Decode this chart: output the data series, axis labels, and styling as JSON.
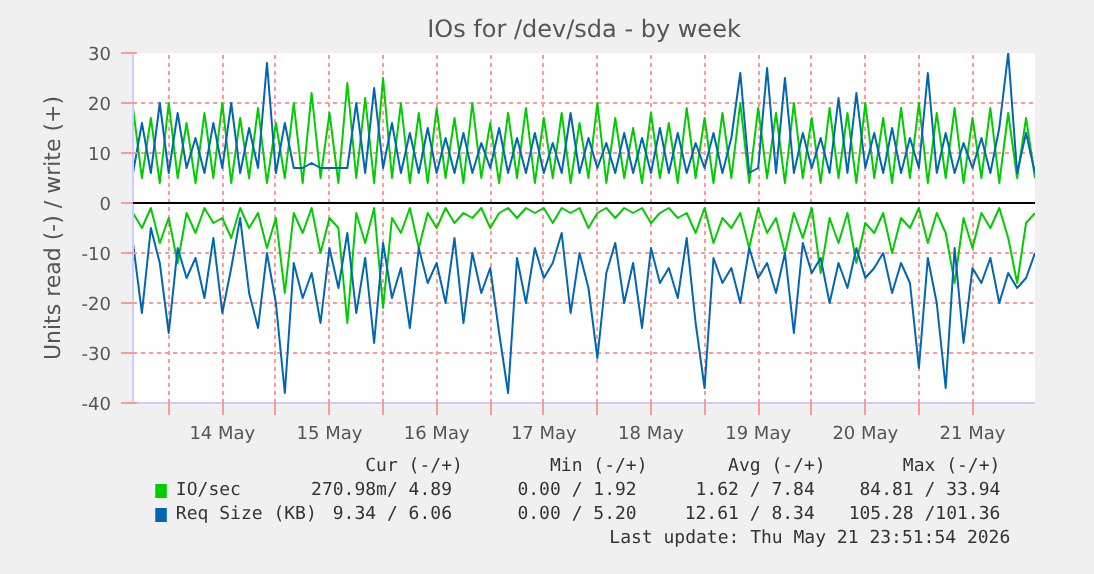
{
  "chart_data": {
    "type": "line",
    "title": "IOs for /dev/sda - by week",
    "ylabel": "Units read (-) / write (+)",
    "x": [
      "2026-05-13T16:00",
      "2026-05-13T18:00",
      "2026-05-13T20:00",
      "2026-05-13T22:00",
      "2026-05-14T00:00",
      "2026-05-14T02:00",
      "2026-05-14T04:00",
      "2026-05-14T06:00",
      "2026-05-14T08:00",
      "2026-05-14T10:00",
      "2026-05-14T12:00",
      "2026-05-14T14:00",
      "2026-05-14T16:00",
      "2026-05-14T18:00",
      "2026-05-14T20:00",
      "2026-05-14T22:00",
      "2026-05-15T00:00",
      "2026-05-15T02:00",
      "2026-05-15T04:00",
      "2026-05-15T06:00",
      "2026-05-15T08:00",
      "2026-05-15T10:00",
      "2026-05-15T12:00",
      "2026-05-15T14:00",
      "2026-05-15T16:00",
      "2026-05-15T18:00",
      "2026-05-15T20:00",
      "2026-05-15T22:00",
      "2026-05-16T00:00",
      "2026-05-16T02:00",
      "2026-05-16T04:00",
      "2026-05-16T06:00",
      "2026-05-16T08:00",
      "2026-05-16T10:00",
      "2026-05-16T12:00",
      "2026-05-16T14:00",
      "2026-05-16T16:00",
      "2026-05-16T18:00",
      "2026-05-16T20:00",
      "2026-05-16T22:00",
      "2026-05-17T00:00",
      "2026-05-17T02:00",
      "2026-05-17T04:00",
      "2026-05-17T06:00",
      "2026-05-17T08:00",
      "2026-05-17T10:00",
      "2026-05-17T12:00",
      "2026-05-17T14:00",
      "2026-05-17T16:00",
      "2026-05-17T18:00",
      "2026-05-17T20:00",
      "2026-05-17T22:00",
      "2026-05-18T00:00",
      "2026-05-18T02:00",
      "2026-05-18T04:00",
      "2026-05-18T06:00",
      "2026-05-18T08:00",
      "2026-05-18T10:00",
      "2026-05-18T12:00",
      "2026-05-18T14:00",
      "2026-05-18T16:00",
      "2026-05-18T18:00",
      "2026-05-18T20:00",
      "2026-05-18T22:00",
      "2026-05-19T00:00",
      "2026-05-19T02:00",
      "2026-05-19T04:00",
      "2026-05-19T06:00",
      "2026-05-19T08:00",
      "2026-05-19T10:00",
      "2026-05-19T12:00",
      "2026-05-19T14:00",
      "2026-05-19T16:00",
      "2026-05-19T18:00",
      "2026-05-19T20:00",
      "2026-05-19T22:00",
      "2026-05-20T00:00",
      "2026-05-20T02:00",
      "2026-05-20T04:00",
      "2026-05-20T06:00",
      "2026-05-20T08:00",
      "2026-05-20T10:00",
      "2026-05-20T12:00",
      "2026-05-20T14:00",
      "2026-05-20T16:00",
      "2026-05-20T18:00",
      "2026-05-20T20:00",
      "2026-05-20T22:00",
      "2026-05-21T00:00",
      "2026-05-21T02:00",
      "2026-05-21T04:00",
      "2026-05-21T06:00",
      "2026-05-21T08:00",
      "2026-05-21T10:00",
      "2026-05-21T12:00",
      "2026-05-21T14:00",
      "2026-05-21T16:00",
      "2026-05-21T18:00",
      "2026-05-21T20:00",
      "2026-05-21T22:00",
      "2026-05-22T00:00",
      "2026-05-22T02:00"
    ],
    "series": [
      {
        "name": "IO/sec",
        "color": "#00cc00",
        "values": [
          19,
          5,
          17,
          4,
          20,
          5,
          16,
          4,
          18,
          5,
          20,
          4,
          17,
          5,
          19,
          4,
          16,
          5,
          20,
          4,
          22,
          5,
          18,
          4,
          24,
          5,
          21,
          4,
          25,
          5,
          20,
          4,
          18,
          4,
          19,
          5,
          17,
          4,
          20,
          5,
          16,
          4,
          18,
          5,
          19,
          4,
          17,
          5,
          18,
          4,
          16,
          5,
          20,
          4,
          17,
          5,
          15,
          4,
          18,
          5,
          16,
          4,
          19,
          5,
          17,
          4,
          18,
          5,
          20,
          4,
          19,
          5,
          18,
          4,
          20,
          5,
          17,
          4,
          19,
          5,
          18,
          4,
          20,
          5,
          17,
          4,
          19,
          5,
          20,
          4,
          18,
          5,
          19,
          4,
          17,
          5,
          19,
          4,
          18,
          5,
          17,
          5
        ]
      },
      {
        "color": "#00cc00",
        "values": [
          -2,
          -5,
          -1,
          -8,
          -3,
          -12,
          -2,
          -6,
          -1,
          -4,
          -3,
          -7,
          -1,
          -5,
          -2,
          -9,
          -3,
          -18,
          -2,
          -6,
          -1,
          -10,
          -3,
          -5,
          -24,
          -2,
          -8,
          -1,
          -21,
          -3,
          -6,
          -1,
          -9,
          -2,
          -5,
          -1,
          -4,
          -2,
          -3,
          -1,
          -5,
          -2,
          -1,
          -3,
          -1,
          -2,
          -1,
          -4,
          -1,
          -2,
          -1,
          -5,
          -2,
          -1,
          -3,
          -1,
          -2,
          -1,
          -4,
          -2,
          -1,
          -3,
          -2,
          -6,
          -1,
          -8,
          -3,
          -5,
          -2,
          -9,
          -1,
          -6,
          -3,
          -10,
          -2,
          -7,
          -1,
          -14,
          -3,
          -8,
          -2,
          -12,
          -4,
          -6,
          -2,
          -10,
          -3,
          -5,
          -1,
          -8,
          -2,
          -6,
          -16,
          -3,
          -9,
          -2,
          -5,
          -1,
          -7,
          -16,
          -4,
          -2
        ]
      },
      {
        "name": "Req Size (KB)",
        "color": "#0066b3",
        "values": [
          6,
          16,
          6,
          20,
          6,
          18,
          7,
          13,
          6,
          16,
          7,
          20,
          6,
          15,
          7,
          28,
          6,
          16,
          7,
          7,
          8,
          7,
          7,
          7,
          7,
          20,
          6,
          23,
          7,
          16,
          6,
          14,
          6,
          15,
          6,
          13,
          6,
          14,
          6,
          12,
          7,
          15,
          6,
          13,
          6,
          14,
          6,
          12,
          6,
          18,
          6,
          13,
          7,
          12,
          6,
          14,
          6,
          13,
          6,
          15,
          6,
          14,
          6,
          12,
          7,
          14,
          6,
          13,
          26,
          6,
          7,
          27,
          6,
          25,
          6,
          14,
          7,
          13,
          6,
          21,
          6,
          22,
          7,
          14,
          6,
          15,
          6,
          13,
          7,
          26,
          6,
          14,
          6,
          12,
          7,
          13,
          6,
          15,
          30,
          6,
          14,
          6
        ]
      },
      {
        "color": "#0066b3",
        "values": [
          -8,
          -22,
          -5,
          -12,
          -26,
          -9,
          -15,
          -11,
          -19,
          -7,
          -22,
          -13,
          -3,
          -18,
          -25,
          -10,
          -20,
          -38,
          -12,
          -19,
          -14,
          -24,
          -9,
          -17,
          -6,
          -22,
          -11,
          -28,
          -8,
          -19,
          -13,
          -25,
          -9,
          -16,
          -12,
          -20,
          -7,
          -24,
          -10,
          -18,
          -13,
          -26,
          -38,
          -11,
          -20,
          -9,
          -15,
          -12,
          -6,
          -22,
          -10,
          -17,
          -31,
          -14,
          -8,
          -20,
          -12,
          -25,
          -9,
          -16,
          -13,
          -19,
          -7,
          -24,
          -37,
          -11,
          -16,
          -13,
          -20,
          -9,
          -15,
          -12,
          -18,
          -10,
          -26,
          -8,
          -14,
          -11,
          -20,
          -12,
          -17,
          -9,
          -15,
          -13,
          -10,
          -18,
          -12,
          -16,
          -33,
          -11,
          -20,
          -37,
          -9,
          -28,
          -13,
          -16,
          -11,
          -20,
          -14,
          -17,
          -15,
          -10
        ]
      }
    ],
    "xlim": [
      "2026-05-13T16:00",
      "2026-05-22T02:00"
    ],
    "xticks": [
      {
        "value": "2026-05-14T00:00",
        "label": null
      },
      {
        "value": "2026-05-14T12:00",
        "label": "14 May"
      },
      {
        "value": "2026-05-15T00:00",
        "label": null
      },
      {
        "value": "2026-05-15T12:00",
        "label": "15 May"
      },
      {
        "value": "2026-05-16T00:00",
        "label": null
      },
      {
        "value": "2026-05-16T12:00",
        "label": "16 May"
      },
      {
        "value": "2026-05-17T00:00",
        "label": null
      },
      {
        "value": "2026-05-17T12:00",
        "label": "17 May"
      },
      {
        "value": "2026-05-18T00:00",
        "label": null
      },
      {
        "value": "2026-05-18T12:00",
        "label": "18 May"
      },
      {
        "value": "2026-05-19T00:00",
        "label": null
      },
      {
        "value": "2026-05-19T12:00",
        "label": "19 May"
      },
      {
        "value": "2026-05-20T00:00",
        "label": null
      },
      {
        "value": "2026-05-20T12:00",
        "label": "20 May"
      },
      {
        "value": "2026-05-21T00:00",
        "label": null
      },
      {
        "value": "2026-05-21T12:00",
        "label": "21 May"
      }
    ],
    "ylim": [
      -40,
      30
    ],
    "yticks": [
      -40,
      -30,
      -20,
      -10,
      0,
      10,
      20,
      30
    ],
    "grid": true,
    "legend": "bottom",
    "marker": "none",
    "line_style": "solid",
    "ref_lines": [
      {
        "axis": "y",
        "value": 0,
        "label": null,
        "color": "#000000"
      }
    ],
    "annotations": [
      "Cur (-/+)",
      "Min (-/+)",
      "Avg (-/+)",
      "Max (-/+)",
      "270.98m/  4.89",
      "0.00 /  1.92",
      "1.62 /  7.84",
      "84.81 / 33.94",
      "9.34 /  6.06",
      "0.00 /  5.20",
      "12.61 /  8.34",
      "105.28 /101.36",
      "Last update: Thu May 21 23:51:54 2026"
    ]
  }
}
